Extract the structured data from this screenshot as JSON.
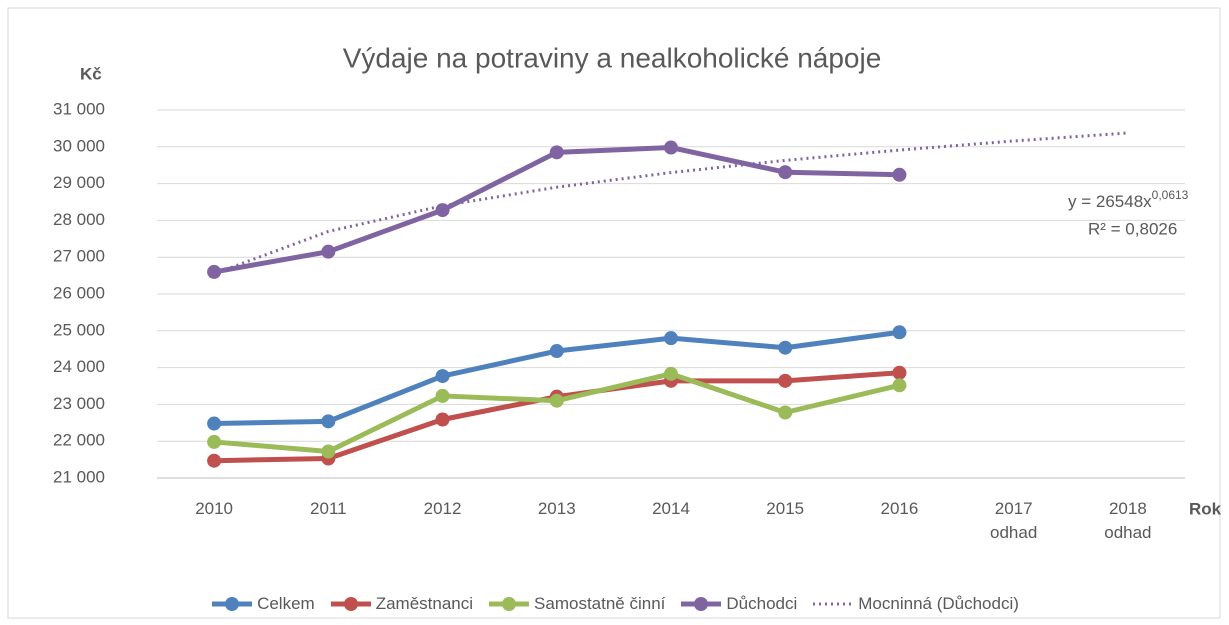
{
  "chart_data": {
    "type": "line",
    "title": "Výdaje na potraviny a nealkoholické nápoje",
    "y_label": "Kč",
    "x_label": "Rok",
    "categories": [
      "2010",
      "2011",
      "2012",
      "2013",
      "2014",
      "2015",
      "2016",
      "2017\nodhad",
      "2018\nodhad"
    ],
    "series": [
      {
        "name": "Celkem",
        "color": "#4f81bd",
        "values": [
          22480,
          22540,
          23770,
          24450,
          24800,
          24540,
          24960,
          null,
          null
        ]
      },
      {
        "name": "Zaměstnanci",
        "color": "#c0504d",
        "values": [
          21470,
          21530,
          22590,
          23210,
          23640,
          23640,
          23860,
          null,
          null
        ]
      },
      {
        "name": "Samostatně činní",
        "color": "#9bbb59",
        "values": [
          21980,
          21720,
          23230,
          23100,
          23830,
          22780,
          23520,
          null,
          null
        ]
      },
      {
        "name": "Důchodci",
        "color": "#8064a2",
        "values": [
          26600,
          27150,
          28280,
          29850,
          29980,
          29310,
          29240,
          null,
          null
        ]
      },
      {
        "name": "Mocninná (Důchodci)",
        "color": "#8064a2",
        "dotted": true,
        "values": [
          26548,
          27700,
          28398,
          28902,
          29300,
          29631,
          29911,
          30158,
          30376
        ]
      }
    ],
    "annotation": {
      "equation": "y = 26548x",
      "exponent": "0,0613",
      "r2": "R² = 0,8026"
    },
    "ylim": [
      21000,
      31000
    ],
    "yticks": [
      {
        "value": 21000,
        "label": "21 000"
      },
      {
        "value": 22000,
        "label": "22 000"
      },
      {
        "value": 23000,
        "label": "23 000"
      },
      {
        "value": 24000,
        "label": "24 000"
      },
      {
        "value": 25000,
        "label": "25 000"
      },
      {
        "value": 26000,
        "label": "26 000"
      },
      {
        "value": 27000,
        "label": "27 000"
      },
      {
        "value": 28000,
        "label": "28 000"
      },
      {
        "value": 29000,
        "label": "29 000"
      },
      {
        "value": 30000,
        "label": "30 000"
      },
      {
        "value": 31000,
        "label": "31 000"
      }
    ],
    "grid": true
  }
}
